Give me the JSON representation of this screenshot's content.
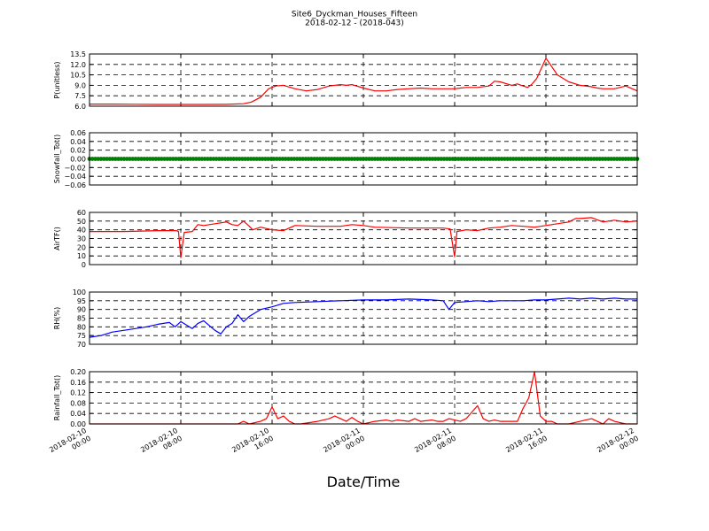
{
  "figure": {
    "title": "Site6_Dyckman_Houses_Fifteen",
    "subtitle": "2018-02-12 - (2018-043)",
    "xlabel": "Date/Time",
    "xtick_labels": [
      [
        "2018-02-10",
        "00:00"
      ],
      [
        "2018-02-10",
        "08:00"
      ],
      [
        "2018-02-10",
        "16:00"
      ],
      [
        "2018-02-11",
        "00:00"
      ],
      [
        "2018-02-11",
        "08:00"
      ],
      [
        "2018-02-11",
        "16:00"
      ],
      [
        "2018-02-12",
        "00:00"
      ]
    ]
  },
  "chart_data": [
    {
      "type": "line",
      "ylabel": "P(unitless)",
      "ylim": [
        6.0,
        13.5
      ],
      "yticks": [
        "6.0",
        "7.5",
        "9.0",
        "10.5",
        "12.0",
        "13.5"
      ],
      "xlim_hours": [
        0,
        48
      ],
      "grid": true,
      "color": "#ff0000",
      "x": [
        0,
        2,
        4,
        6,
        8,
        10,
        12,
        13.5,
        14.2,
        15,
        15.7,
        16.3,
        17,
        18,
        19,
        20,
        21,
        22,
        22.5,
        23,
        24,
        25,
        26,
        27,
        28,
        29,
        30,
        31,
        32,
        32.5,
        33,
        34,
        35,
        35.5,
        36,
        37,
        37.5,
        38,
        38.4,
        38.8,
        39.2,
        40,
        41,
        42,
        43,
        44,
        44.5,
        45,
        46,
        47,
        48
      ],
      "y": [
        6.3,
        6.3,
        6.28,
        6.26,
        6.25,
        6.25,
        6.27,
        6.35,
        6.6,
        7.3,
        8.5,
        8.9,
        9.0,
        8.5,
        8.2,
        8.4,
        8.9,
        9.1,
        9.0,
        9.1,
        8.6,
        8.2,
        8.2,
        8.4,
        8.5,
        8.6,
        8.5,
        8.5,
        8.5,
        8.6,
        8.7,
        8.7,
        8.9,
        9.6,
        9.5,
        9.0,
        9.2,
        8.9,
        8.7,
        9.2,
        10.0,
        12.9,
        10.5,
        9.5,
        9.0,
        8.8,
        8.6,
        8.5,
        8.5,
        8.9,
        8.2
      ]
    },
    {
      "type": "line",
      "ylabel": "Snowfall_Tot()",
      "ylim": [
        -0.06,
        0.06
      ],
      "yticks": [
        "−0.06",
        "−0.04",
        "−0.02",
        "0.00",
        "0.02",
        "0.04",
        "0.06"
      ],
      "xlim_hours": [
        0,
        48
      ],
      "grid": true,
      "color": "#008000",
      "marker": "dot",
      "x": [
        0,
        48
      ],
      "y": [
        0,
        0
      ]
    },
    {
      "type": "line",
      "ylabel": "AirTF()",
      "ylim": [
        0,
        60
      ],
      "yticks": [
        "0",
        "10",
        "20",
        "30",
        "40",
        "50",
        "60"
      ],
      "xlim_hours": [
        0,
        48
      ],
      "grid": true,
      "color": "#ff0000",
      "x": [
        0,
        3,
        6,
        7.6,
        7.8,
        8.0,
        8.3,
        9,
        9.5,
        10,
        11,
        12,
        12.5,
        13,
        13.5,
        14,
        14.3,
        15,
        16,
        17,
        18,
        20,
        22,
        23,
        24,
        25,
        28,
        31,
        31.6,
        31.8,
        32.0,
        32.2,
        33,
        34,
        35,
        36,
        37,
        38,
        39,
        40,
        41,
        42,
        42.6,
        43,
        44,
        45,
        46,
        47,
        48
      ],
      "y": [
        38,
        38,
        39,
        39,
        38,
        8,
        37,
        38,
        46,
        45,
        47,
        49,
        46,
        45,
        50,
        44,
        40,
        43,
        40,
        39,
        45,
        44,
        44,
        46,
        45,
        43,
        42,
        42,
        41,
        25,
        9,
        38,
        40,
        39,
        42,
        43,
        45,
        44,
        43,
        45,
        47,
        49,
        53,
        53,
        54,
        49,
        51,
        49,
        50
      ]
    },
    {
      "type": "line",
      "ylabel": "RH(%)",
      "ylim": [
        70,
        100
      ],
      "yticks": [
        "70",
        "75",
        "80",
        "85",
        "90",
        "95",
        "100"
      ],
      "xlim_hours": [
        0,
        48
      ],
      "grid": true,
      "color": "#0000ff",
      "x": [
        0,
        1,
        2,
        3,
        4,
        5,
        6,
        7,
        7.5,
        8,
        9,
        9.5,
        10,
        11,
        11.5,
        12,
        12.5,
        13,
        13.5,
        14,
        14.5,
        15,
        16,
        17,
        18,
        20,
        22,
        24,
        26,
        28,
        30,
        31,
        31.5,
        32,
        33,
        34,
        35,
        36,
        37,
        38,
        39,
        40,
        41,
        42,
        43,
        44,
        45,
        46,
        47,
        48
      ],
      "y": [
        74,
        75,
        77,
        78,
        79,
        80,
        81.5,
        82.5,
        80,
        83,
        79,
        82,
        83.5,
        78,
        76,
        80,
        82,
        87,
        83,
        86,
        88,
        90,
        91.5,
        93.5,
        94,
        94.5,
        95,
        95.5,
        95.5,
        96,
        95.5,
        95,
        90,
        94,
        94.5,
        95,
        94.5,
        95,
        95,
        95,
        95.5,
        95.5,
        96,
        96.5,
        96,
        96.5,
        96,
        96.5,
        96,
        96
      ]
    },
    {
      "type": "line",
      "ylabel": "Rainfall_Tot()",
      "ylim": [
        0.0,
        0.2
      ],
      "yticks": [
        "0.00",
        "0.04",
        "0.08",
        "0.12",
        "0.16",
        "0.20"
      ],
      "xlim_hours": [
        0,
        48
      ],
      "grid": true,
      "color": "#ff0000",
      "x": [
        0,
        13,
        13.5,
        14,
        15,
        15.5,
        16,
        16.5,
        17,
        17.5,
        18,
        18.5,
        20,
        21,
        21.5,
        22,
        22.5,
        23,
        23.5,
        24,
        25,
        26,
        26.5,
        27,
        28,
        28.5,
        29,
        30,
        30.5,
        31,
        31.5,
        32,
        32.5,
        33,
        34,
        34.5,
        35,
        35.5,
        36,
        37,
        37.5,
        38,
        38.5,
        39,
        39.5,
        40,
        40.5,
        41,
        42,
        43,
        44,
        44.5,
        45,
        45.5,
        46,
        47,
        48
      ],
      "y": [
        0,
        0,
        0.01,
        0,
        0.01,
        0.02,
        0.065,
        0.02,
        0.03,
        0.01,
        0,
        0,
        0.01,
        0.02,
        0.03,
        0.02,
        0.01,
        0.025,
        0.01,
        0,
        0.01,
        0.015,
        0.01,
        0.015,
        0.01,
        0.02,
        0.01,
        0.015,
        0.01,
        0.01,
        0.02,
        0.015,
        0.01,
        0.02,
        0.07,
        0.02,
        0.01,
        0.015,
        0.01,
        0.01,
        0.01,
        0.06,
        0.1,
        0.2,
        0.03,
        0.01,
        0.01,
        0,
        0,
        0.01,
        0.02,
        0.01,
        0,
        0.02,
        0.01,
        0,
        0
      ]
    }
  ]
}
